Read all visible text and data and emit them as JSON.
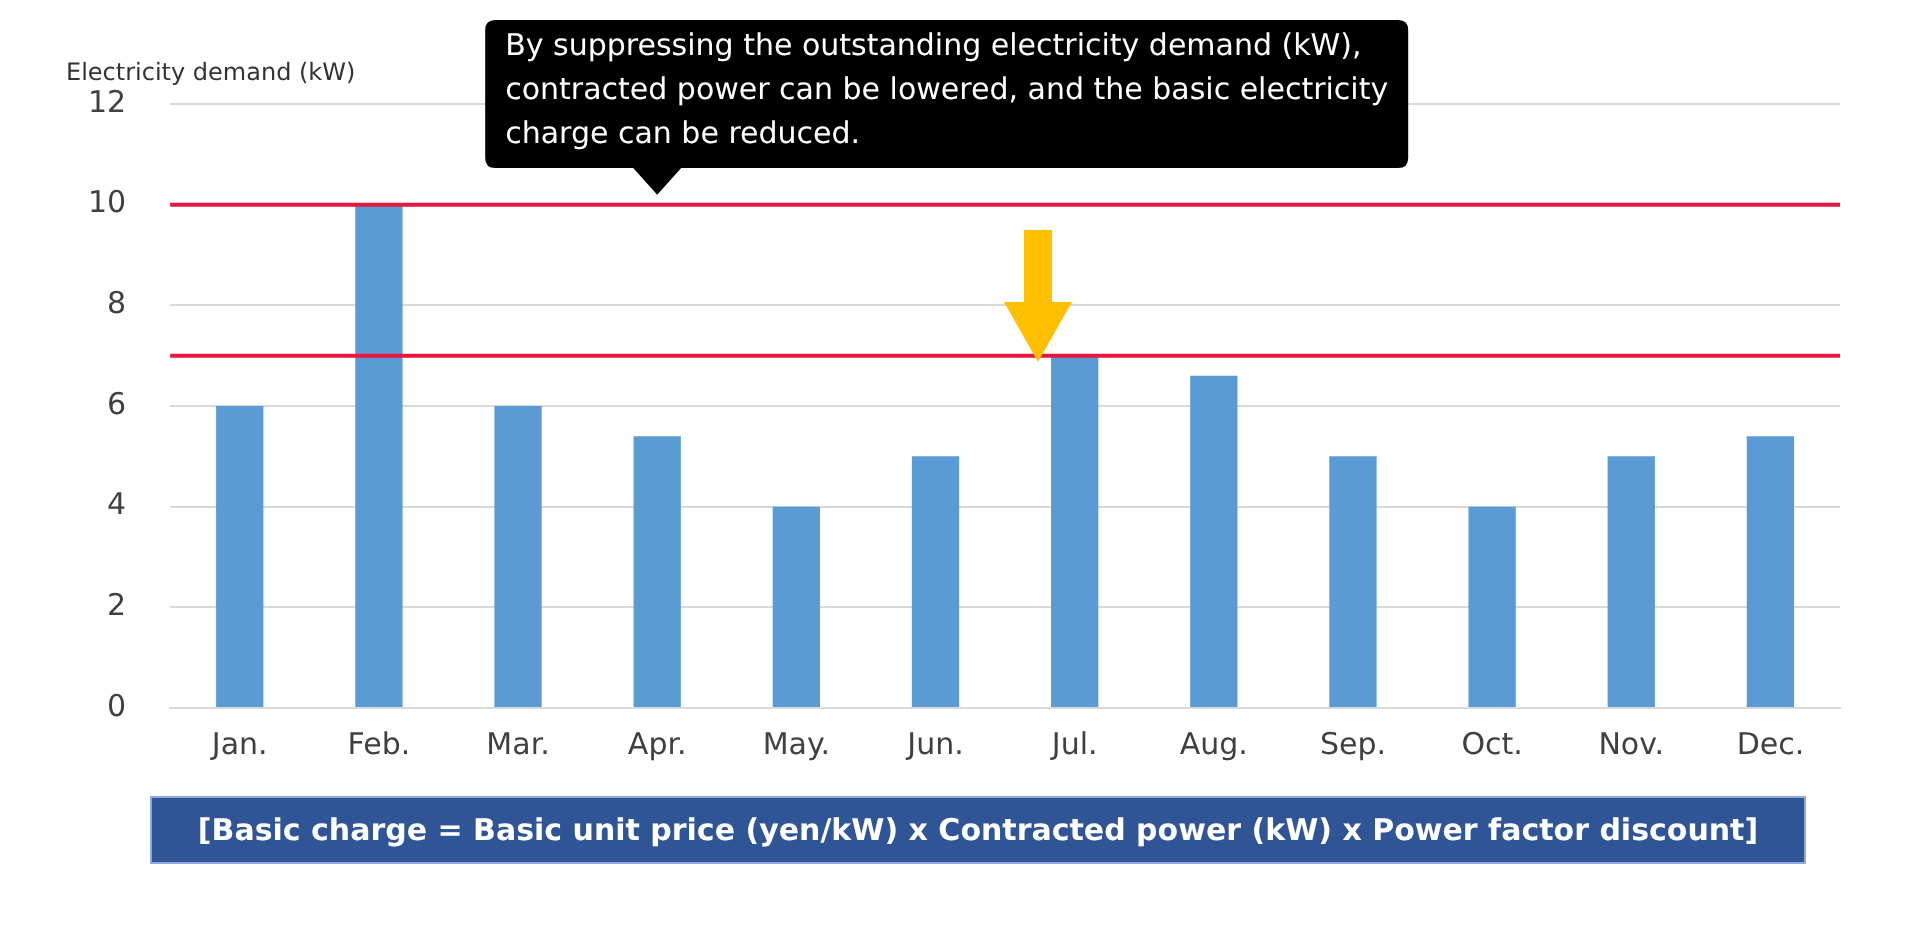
{
  "chart_data": {
    "type": "bar",
    "ylabel": "Electricity demand (kW)",
    "categories": [
      "Jan.",
      "Feb.",
      "Mar.",
      "Apr.",
      "May.",
      "Jun.",
      "Jul.",
      "Aug.",
      "Sep.",
      "Oct.",
      "Nov.",
      "Dec."
    ],
    "values": [
      6,
      10,
      6,
      5.4,
      4,
      5,
      7,
      6.6,
      5,
      4,
      5,
      5.4
    ],
    "color": "#5b9bd5",
    "ylim": [
      0,
      12
    ],
    "yticks": [
      0,
      2,
      4,
      6,
      8,
      10,
      12
    ],
    "grid": "y",
    "legend": false,
    "ref_lines": [
      {
        "axis": "y",
        "value": 10,
        "color": "#e8173f"
      },
      {
        "axis": "y",
        "value": 7,
        "color": "#e8173f"
      }
    ],
    "annotations": [
      {
        "text": "By suppressing the outstanding electricity demand (kW), contracted power can be lowered, and the basic electricity charge can be reduced.",
        "x": "Apr.",
        "y": 10
      },
      "[Basic charge = Basic unit price (yen/kW) x Contracted power (kW) x Power factor discount]"
    ]
  }
}
